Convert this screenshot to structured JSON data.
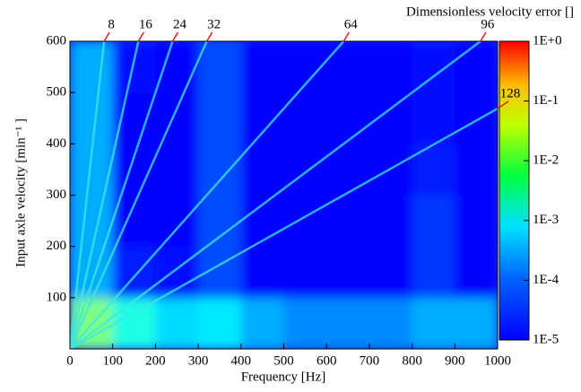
{
  "chart_data": {
    "type": "campbell",
    "title": "Dimensionless velocity error []",
    "xlabel": "Frequency [Hz]",
    "ylabel": "Input axle velocity [min⁻¹ ]",
    "xlim": [
      0,
      1000
    ],
    "xticks": [
      0,
      100,
      200,
      300,
      400,
      500,
      600,
      700,
      800,
      900,
      1000
    ],
    "ylim": [
      0,
      600
    ],
    "yticks": [
      100,
      200,
      300,
      400,
      500,
      600
    ],
    "xbins": [
      0,
      100,
      200,
      300,
      400,
      500,
      600,
      700,
      800,
      900,
      1000
    ],
    "ybins": [
      0,
      100,
      200,
      300,
      400,
      500,
      600
    ],
    "z": [
      [
        0.003,
        0.001,
        0.0005,
        0.0006,
        0.0003,
        0.0002,
        0.0002,
        0.0002,
        0.0003,
        0.0003
      ],
      [
        0.0003,
        6e-05,
        5e-05,
        0.0001,
        4e-05,
        4e-05,
        3e-05,
        3e-05,
        8e-05,
        4e-05
      ],
      [
        0.0003,
        4e-05,
        3e-05,
        0.0001,
        3e-05,
        3e-05,
        3e-05,
        3e-05,
        8e-05,
        3e-05
      ],
      [
        0.0003,
        3e-05,
        3e-05,
        0.0001,
        3e-05,
        3e-05,
        2e-05,
        3e-05,
        6e-05,
        3e-05
      ],
      [
        0.0003,
        4e-05,
        3e-05,
        0.0001,
        2e-05,
        2e-05,
        2e-05,
        2e-05,
        5e-05,
        3e-05
      ],
      [
        0.0003,
        5e-05,
        3e-05,
        0.0001,
        2e-05,
        2e-05,
        2e-05,
        2e-05,
        5e-05,
        3e-05
      ]
    ],
    "zlim": [
      1e-05,
      1
    ],
    "zscale": "log",
    "zticks": [
      {
        "value": 1,
        "label": "1E+0"
      },
      {
        "value": 0.1,
        "label": "1E-1"
      },
      {
        "value": 0.01,
        "label": "1E-2"
      },
      {
        "value": 0.001,
        "label": "1E-3"
      },
      {
        "value": 0.0001,
        "label": "1E-4"
      },
      {
        "value": 1e-05,
        "label": "1E-5"
      }
    ],
    "orders": [
      8,
      16,
      24,
      32,
      64,
      96,
      128
    ],
    "order_color": "#40e8e0",
    "pointer_color": "#e02020"
  }
}
